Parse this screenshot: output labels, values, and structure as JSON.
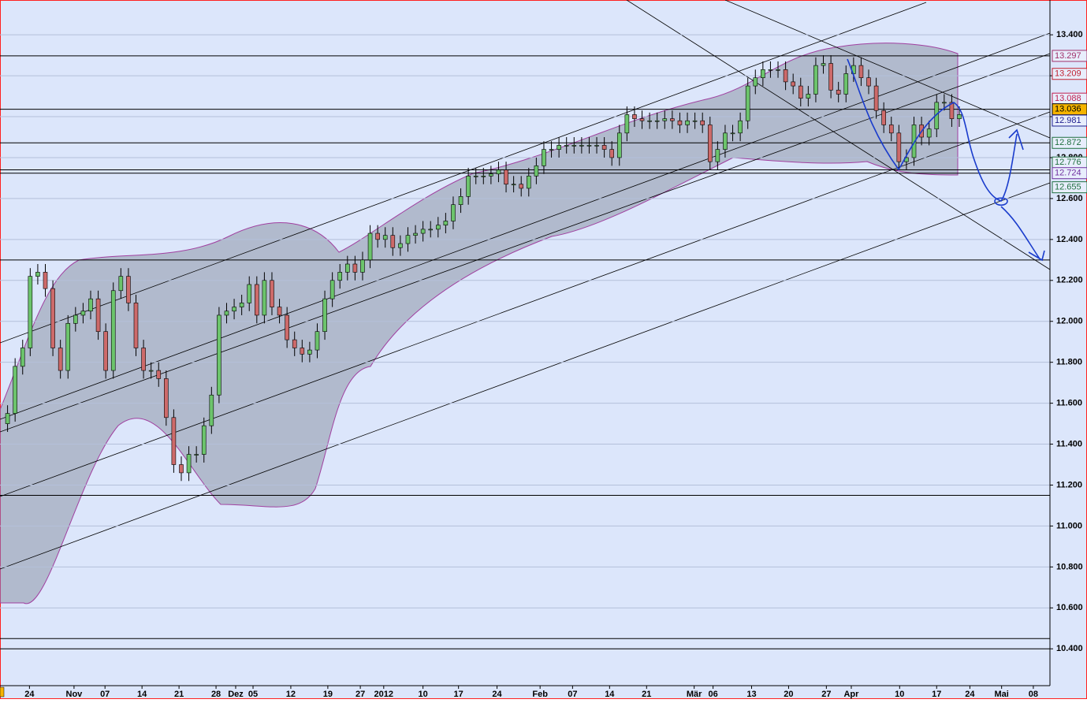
{
  "chart_data": {
    "type": "candlestick",
    "xlim": [
      -1,
      138
    ],
    "xticks": [
      {
        "value": 2.9,
        "label": "24"
      },
      {
        "value": 8.8,
        "label": "Nov"
      },
      {
        "value": 12.9,
        "label": "07"
      },
      {
        "value": 17.8,
        "label": "14"
      },
      {
        "value": 22.7,
        "label": "21"
      },
      {
        "value": 27.6,
        "label": "28"
      },
      {
        "value": 30.2,
        "label": "Dez"
      },
      {
        "value": 32.5,
        "label": "05"
      },
      {
        "value": 37.5,
        "label": "12"
      },
      {
        "value": 42.4,
        "label": "19"
      },
      {
        "value": 46.7,
        "label": "27"
      },
      {
        "value": 49.8,
        "label": "2012"
      },
      {
        "value": 55,
        "label": "10"
      },
      {
        "value": 59.7,
        "label": "17"
      },
      {
        "value": 64.8,
        "label": "24"
      },
      {
        "value": 70.5,
        "label": "Feb"
      },
      {
        "value": 74.8,
        "label": "07"
      },
      {
        "value": 79.7,
        "label": "14"
      },
      {
        "value": 84.6,
        "label": "21"
      },
      {
        "value": 90.9,
        "label": "Mär"
      },
      {
        "value": 93.4,
        "label": "06"
      },
      {
        "value": 98.5,
        "label": "13"
      },
      {
        "value": 103.4,
        "label": "20"
      },
      {
        "value": 108.4,
        "label": "27"
      },
      {
        "value": 111.7,
        "label": "Apr"
      },
      {
        "value": 118.1,
        "label": "10"
      },
      {
        "value": 123,
        "label": "17"
      },
      {
        "value": 127.4,
        "label": "24"
      },
      {
        "value": 131.6,
        "label": "Mai"
      },
      {
        "value": 135.8,
        "label": "08"
      }
    ],
    "ylim": [
      10.22,
      13.57
    ],
    "yticks": [
      {
        "value": 13.4,
        "label": "13.400"
      },
      {
        "value": 13.2,
        "label": "13.200"
      },
      {
        "value": 13.0,
        "label": "13.000"
      },
      {
        "value": 12.8,
        "label": "12.800"
      },
      {
        "value": 12.6,
        "label": "12.600"
      },
      {
        "value": 12.4,
        "label": "12.400"
      },
      {
        "value": 12.2,
        "label": "12.200"
      },
      {
        "value": 12.0,
        "label": "12.000"
      },
      {
        "value": 11.8,
        "label": "11.800"
      },
      {
        "value": 11.6,
        "label": "11.600"
      },
      {
        "value": 11.4,
        "label": "11.400"
      },
      {
        "value": 11.2,
        "label": "11.200"
      },
      {
        "value": 11.0,
        "label": "11.000"
      },
      {
        "value": 10.8,
        "label": "10.800"
      },
      {
        "value": 10.6,
        "label": "10.600"
      },
      {
        "value": 10.4,
        "label": "10.400"
      }
    ],
    "grid": true,
    "up_color": "#6cc46c",
    "down_color": "#cd6a6a",
    "open": [
      11.5,
      11.55,
      11.78,
      11.87,
      12.22,
      12.24,
      12.16,
      11.87,
      11.76,
      11.99,
      12.03,
      12.05,
      12.11,
      11.95,
      11.76,
      12.15,
      12.22,
      12.09,
      11.87,
      11.76,
      11.76,
      11.72,
      11.53,
      11.3,
      11.26,
      11.35,
      11.35,
      11.49,
      11.64,
      12.03,
      12.05,
      12.07,
      12.09,
      12.18,
      12.03,
      12.2,
      12.07,
      12.03,
      11.91,
      11.87,
      11.84,
      11.86,
      11.95,
      12.11,
      12.2,
      12.24,
      12.28,
      12.24,
      12.3,
      12.43,
      12.4,
      12.42,
      12.36,
      12.38,
      12.42,
      12.43,
      12.45,
      12.45,
      12.47,
      12.49,
      12.57,
      12.61,
      12.71,
      12.71,
      12.71,
      12.72,
      12.74,
      12.67,
      12.67,
      12.65,
      12.71,
      12.76,
      12.84,
      12.84,
      12.86,
      12.86,
      12.86,
      12.86,
      12.86,
      12.86,
      12.84,
      12.8,
      12.92,
      13.01,
      12.99,
      12.98,
      12.98,
      12.98,
      12.99,
      12.98,
      12.96,
      12.98,
      12.98,
      12.96,
      12.78,
      12.84,
      12.92,
      12.92,
      12.98,
      13.15,
      13.19,
      13.23,
      13.23,
      13.23,
      13.17,
      13.15,
      13.09,
      13.11,
      13.25,
      13.26,
      13.13,
      13.11,
      13.21,
      13.25,
      13.19,
      13.15,
      13.03,
      12.96,
      12.92,
      12.78,
      12.8,
      12.96,
      12.9,
      12.94,
      13.07,
      13.07,
      12.99
    ],
    "high": [
      11.59,
      11.82,
      11.91,
      12.26,
      12.28,
      12.28,
      12.2,
      11.91,
      12.03,
      12.07,
      12.09,
      12.15,
      12.15,
      11.99,
      12.19,
      12.26,
      12.26,
      12.13,
      11.91,
      11.8,
      11.8,
      11.76,
      11.57,
      11.34,
      11.39,
      11.39,
      11.53,
      11.68,
      12.07,
      12.09,
      12.11,
      12.13,
      12.22,
      12.22,
      12.24,
      12.24,
      12.11,
      12.07,
      11.95,
      11.91,
      11.9,
      11.99,
      12.15,
      12.24,
      12.28,
      12.32,
      12.32,
      12.34,
      12.47,
      12.47,
      12.46,
      12.46,
      12.42,
      12.46,
      12.47,
      12.49,
      12.49,
      12.51,
      12.53,
      12.61,
      12.65,
      12.75,
      12.75,
      12.75,
      12.76,
      12.78,
      12.78,
      12.71,
      12.71,
      12.75,
      12.8,
      12.88,
      12.88,
      12.9,
      12.9,
      12.9,
      12.9,
      12.9,
      12.9,
      12.9,
      12.88,
      12.96,
      13.05,
      13.05,
      13.03,
      13.02,
      13.02,
      13.03,
      13.03,
      13.02,
      13.02,
      13.02,
      13.02,
      13.0,
      12.88,
      12.96,
      12.96,
      13.02,
      13.19,
      13.23,
      13.27,
      13.27,
      13.27,
      13.27,
      13.21,
      13.19,
      13.15,
      13.29,
      13.3,
      13.3,
      13.17,
      13.25,
      13.29,
      13.29,
      13.23,
      13.19,
      13.07,
      13.0,
      12.96,
      12.84,
      13.0,
      13.0,
      12.98,
      13.11,
      13.11,
      13.11,
      13.05
    ],
    "low": [
      11.46,
      11.51,
      11.74,
      11.83,
      12.18,
      12.12,
      11.83,
      11.72,
      11.72,
      11.95,
      11.99,
      12.01,
      11.91,
      11.72,
      11.72,
      12.11,
      12.05,
      11.83,
      11.72,
      11.72,
      11.68,
      11.49,
      11.26,
      11.22,
      11.22,
      11.31,
      11.31,
      11.45,
      11.6,
      11.99,
      12.01,
      12.03,
      12.05,
      11.99,
      11.99,
      12.03,
      11.99,
      11.87,
      11.83,
      11.8,
      11.8,
      11.82,
      11.91,
      12.07,
      12.16,
      12.2,
      12.2,
      12.2,
      12.26,
      12.36,
      12.36,
      12.32,
      12.32,
      12.34,
      12.38,
      12.39,
      12.41,
      12.41,
      12.43,
      12.45,
      12.53,
      12.57,
      12.67,
      12.67,
      12.67,
      12.68,
      12.63,
      12.63,
      12.61,
      12.61,
      12.67,
      12.72,
      12.8,
      12.8,
      12.82,
      12.82,
      12.82,
      12.82,
      12.82,
      12.8,
      12.76,
      12.76,
      12.88,
      12.95,
      12.94,
      12.94,
      12.94,
      12.94,
      12.94,
      12.92,
      12.92,
      12.94,
      12.92,
      12.74,
      12.74,
      12.8,
      12.88,
      12.88,
      12.94,
      13.11,
      13.15,
      13.19,
      13.19,
      13.13,
      13.11,
      13.05,
      13.05,
      13.07,
      13.21,
      13.09,
      13.07,
      13.07,
      13.17,
      13.15,
      13.11,
      12.99,
      12.92,
      12.88,
      12.74,
      12.74,
      12.76,
      12.86,
      12.86,
      12.9,
      13.03,
      12.95,
      12.95
    ],
    "close": [
      11.55,
      11.78,
      11.87,
      12.22,
      12.24,
      12.16,
      11.87,
      11.76,
      11.99,
      12.03,
      12.05,
      12.11,
      11.95,
      11.76,
      12.15,
      12.22,
      12.09,
      11.87,
      11.76,
      11.76,
      11.72,
      11.53,
      11.3,
      11.26,
      11.35,
      11.35,
      11.49,
      11.64,
      12.03,
      12.05,
      12.07,
      12.09,
      12.18,
      12.03,
      12.2,
      12.07,
      12.03,
      11.91,
      11.87,
      11.84,
      11.86,
      11.95,
      12.11,
      12.2,
      12.24,
      12.28,
      12.24,
      12.3,
      12.43,
      12.4,
      12.42,
      12.36,
      12.38,
      12.42,
      12.43,
      12.45,
      12.45,
      12.47,
      12.49,
      12.57,
      12.61,
      12.71,
      12.71,
      12.71,
      12.72,
      12.74,
      12.67,
      12.67,
      12.65,
      12.71,
      12.76,
      12.84,
      12.84,
      12.86,
      12.86,
      12.86,
      12.86,
      12.86,
      12.86,
      12.84,
      12.8,
      12.92,
      13.01,
      12.99,
      12.98,
      12.98,
      12.98,
      12.99,
      12.98,
      12.96,
      12.98,
      12.98,
      12.96,
      12.78,
      12.84,
      12.92,
      12.92,
      12.98,
      13.15,
      13.19,
      13.23,
      13.23,
      13.23,
      13.17,
      13.15,
      13.09,
      13.11,
      13.25,
      13.26,
      13.13,
      13.11,
      13.21,
      13.25,
      13.19,
      13.15,
      13.03,
      12.96,
      12.92,
      12.78,
      12.8,
      12.96,
      12.9,
      12.94,
      13.07,
      13.07,
      12.99,
      13.01
    ],
    "hlines": [
      13.297,
      13.036,
      12.872,
      12.74,
      12.724,
      12.3,
      11.15,
      10.45,
      10.4
    ],
    "price_marks": [
      {
        "value": 13.297,
        "color": "#a0306a"
      },
      {
        "value": 13.209,
        "color": "#c02030"
      },
      {
        "value": 13.088,
        "color": "#c02050"
      },
      {
        "value": 13.036,
        "color": "#000000",
        "background": "#f5b400"
      },
      {
        "value": 12.981,
        "color": "#202090"
      },
      {
        "value": 12.872,
        "color": "#207040"
      },
      {
        "value": 12.776,
        "color": "#207040"
      },
      {
        "value": 12.724,
        "color": "#7030a0"
      },
      {
        "value": 12.655,
        "color": "#207040"
      }
    ]
  }
}
